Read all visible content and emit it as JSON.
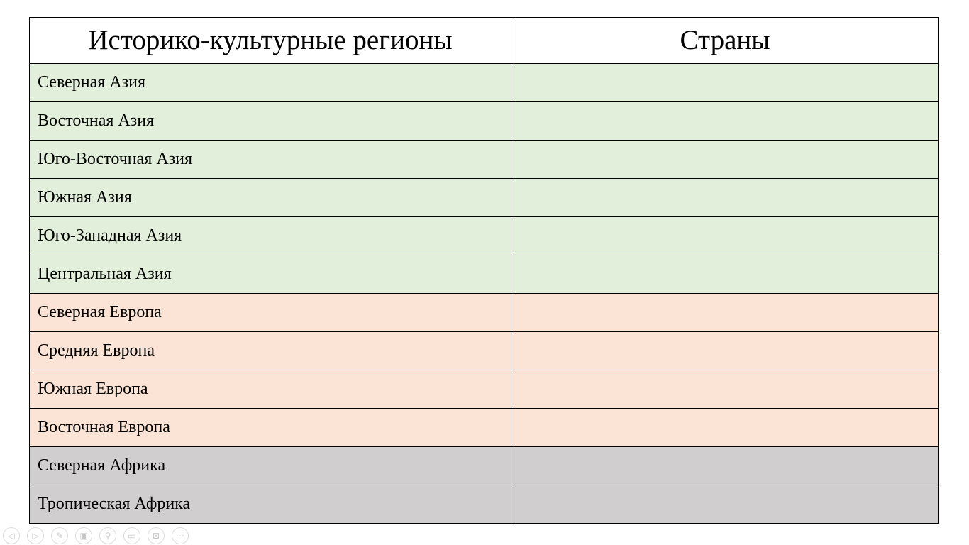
{
  "table": {
    "headers": [
      "Историко-культурные регионы",
      "Страны"
    ],
    "rows": [
      {
        "region": "Северная Азия",
        "countries": "",
        "group": "asia"
      },
      {
        "region": "Восточная Азия",
        "countries": "",
        "group": "asia"
      },
      {
        "region": "Юго-Восточная Азия",
        "countries": "",
        "group": "asia"
      },
      {
        "region": "Южная Азия",
        "countries": "",
        "group": "asia"
      },
      {
        "region": "Юго-Западная Азия",
        "countries": "",
        "group": "asia"
      },
      {
        "region": "Центральная Азия",
        "countries": "",
        "group": "asia"
      },
      {
        "region": "Северная Европа",
        "countries": "",
        "group": "europe"
      },
      {
        "region": "Средняя Европа",
        "countries": "",
        "group": "europe"
      },
      {
        "region": "Южная Европа",
        "countries": "",
        "group": "europe"
      },
      {
        "region": "Восточная Европа",
        "countries": "",
        "group": "europe"
      },
      {
        "region": "Северная Африка",
        "countries": "",
        "group": "africa"
      },
      {
        "region": "Тропическая Африка",
        "countries": "",
        "group": "africa"
      }
    ],
    "colors": {
      "asia": "#e2efda",
      "europe": "#fbe4d5",
      "africa": "#d0cece"
    }
  },
  "slideshow_controls": [
    {
      "icon": "previous-icon",
      "glyph": "◁"
    },
    {
      "icon": "next-icon",
      "glyph": "▷"
    },
    {
      "icon": "pen-icon",
      "glyph": "✎"
    },
    {
      "icon": "slides-icon",
      "glyph": "▣"
    },
    {
      "icon": "zoom-icon",
      "glyph": "⚲"
    },
    {
      "icon": "presenter-view-icon",
      "glyph": "▭"
    },
    {
      "icon": "video-off-icon",
      "glyph": "⊠"
    },
    {
      "icon": "more-options-icon",
      "glyph": "⋯"
    }
  ]
}
